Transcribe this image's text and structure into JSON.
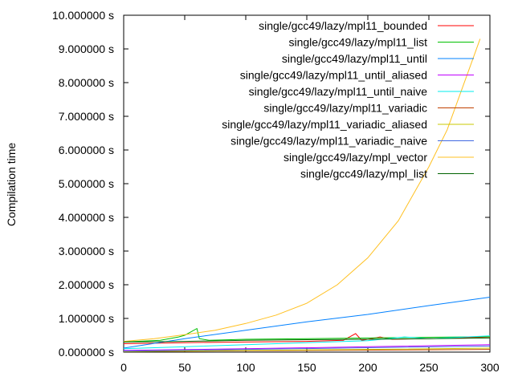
{
  "chart_data": {
    "type": "line",
    "title": "",
    "xlabel": "",
    "ylabel": "Compilation time",
    "xlim": [
      0,
      300
    ],
    "ylim": [
      0,
      10
    ],
    "x_ticks": [
      0,
      50,
      100,
      150,
      200,
      250,
      300
    ],
    "y_ticks": [
      0,
      1,
      2,
      3,
      4,
      5,
      6,
      7,
      8,
      9,
      10
    ],
    "y_tick_labels": [
      "0.000000 s",
      "1.000000 s",
      "2.000000 s",
      "3.000000 s",
      "4.000000 s",
      "5.000000 s",
      "6.000000 s",
      "7.000000 s",
      "8.000000 s",
      "9.000000 s",
      "10.000000 s"
    ],
    "grid": false,
    "legend_position": "top-right",
    "series": [
      {
        "name": "single/gcc49/lazy/mpl11_bounded",
        "color": "#ff0000",
        "x": [
          0,
          50,
          100,
          150,
          180,
          190,
          195,
          200,
          210,
          220,
          250,
          300
        ],
        "y": [
          0.25,
          0.28,
          0.3,
          0.32,
          0.35,
          0.55,
          0.35,
          0.38,
          0.45,
          0.38,
          0.4,
          0.45
        ]
      },
      {
        "name": "single/gcc49/lazy/mpl11_list",
        "color": "#00c000",
        "x": [
          0,
          30,
          45,
          50,
          55,
          60,
          62,
          70,
          100,
          150,
          200,
          250,
          300
        ],
        "y": [
          0.3,
          0.35,
          0.45,
          0.5,
          0.6,
          0.7,
          0.4,
          0.35,
          0.38,
          0.4,
          0.42,
          0.44,
          0.46
        ]
      },
      {
        "name": "single/gcc49/lazy/mpl11_until",
        "color": "#0080ff",
        "x": [
          0,
          50,
          100,
          150,
          200,
          250,
          300
        ],
        "y": [
          0.12,
          0.4,
          0.65,
          0.9,
          1.12,
          1.38,
          1.63
        ]
      },
      {
        "name": "single/gcc49/lazy/mpl11_until_aliased",
        "color": "#c000ff",
        "x": [
          0,
          100,
          200,
          300
        ],
        "y": [
          0.05,
          0.1,
          0.16,
          0.22
        ]
      },
      {
        "name": "single/gcc49/lazy/mpl11_until_naive",
        "color": "#00eeee",
        "x": [
          0,
          100,
          200,
          230,
          250,
          300
        ],
        "y": [
          0.1,
          0.22,
          0.34,
          0.45,
          0.4,
          0.48
        ]
      },
      {
        "name": "single/gcc49/lazy/mpl11_variadic",
        "color": "#c04000",
        "x": [
          0,
          100,
          200,
          300
        ],
        "y": [
          0.02,
          0.04,
          0.06,
          0.08
        ]
      },
      {
        "name": "single/gcc49/lazy/mpl11_variadic_aliased",
        "color": "#c8c800",
        "x": [
          0,
          100,
          200,
          300
        ],
        "y": [
          0.02,
          0.05,
          0.08,
          0.12
        ]
      },
      {
        "name": "single/gcc49/lazy/mpl11_variadic_naive",
        "color": "#4169e1",
        "x": [
          0,
          100,
          200,
          300
        ],
        "y": [
          0.03,
          0.08,
          0.13,
          0.18
        ]
      },
      {
        "name": "single/gcc49/lazy/mpl_vector",
        "color": "#ffc020",
        "x": [
          0,
          25,
          50,
          75,
          100,
          125,
          150,
          175,
          200,
          225,
          250,
          265,
          275,
          285,
          292
        ],
        "y": [
          0.32,
          0.4,
          0.52,
          0.65,
          0.85,
          1.1,
          1.45,
          2.0,
          2.8,
          3.9,
          5.5,
          6.6,
          7.6,
          8.6,
          9.3
        ]
      },
      {
        "name": "single/gcc49/lazy/mpl_list",
        "color": "#006400",
        "x": [
          0,
          50,
          100,
          150,
          200,
          250,
          300
        ],
        "y": [
          0.3,
          0.32,
          0.35,
          0.37,
          0.38,
          0.4,
          0.42
        ]
      }
    ]
  }
}
